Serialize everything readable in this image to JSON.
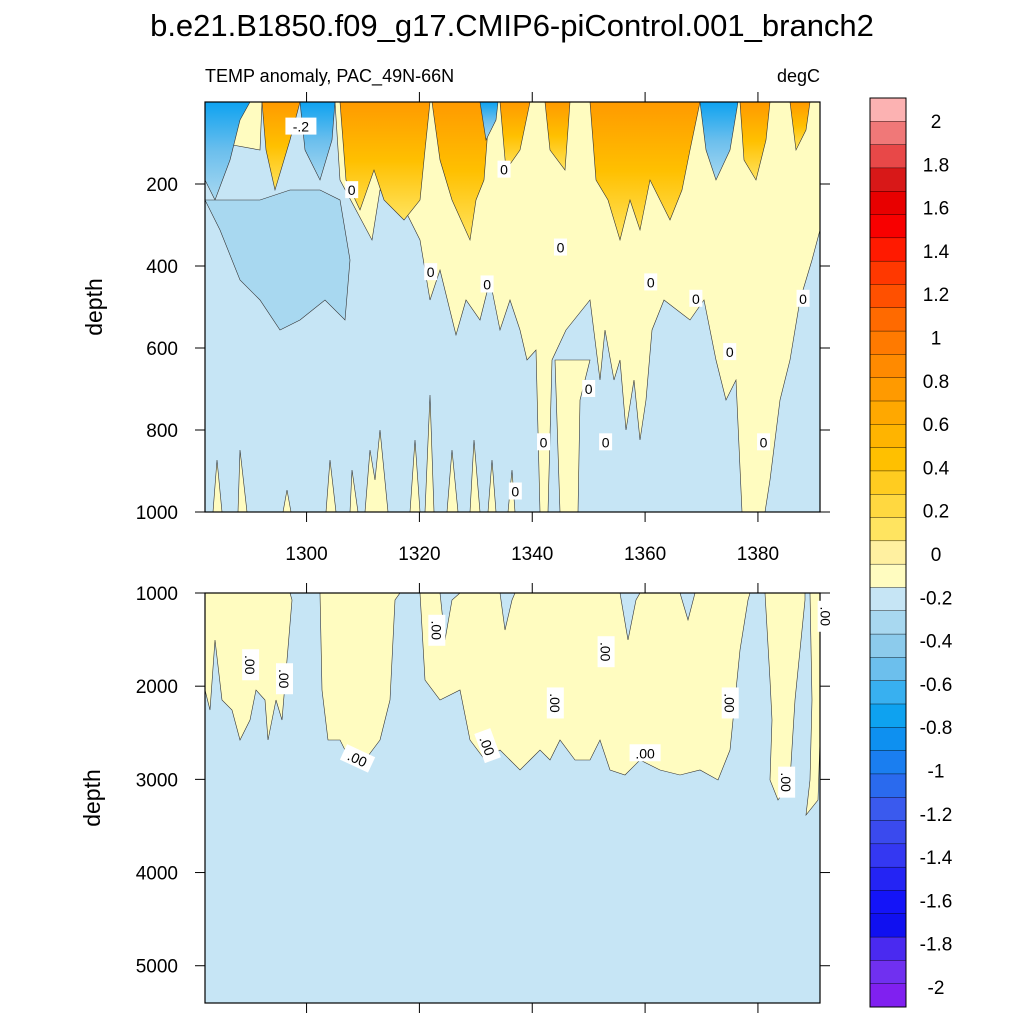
{
  "chart_data": {
    "type": "heatmap",
    "title": "b.e21.B1850.f09_g17.CMIP6-piControl.001_branch2",
    "subtitle_left": "TEMP anomaly, PAC_49N-66N",
    "subtitle_right": "degC",
    "x": {
      "range": [
        1282,
        1391
      ],
      "ticks": [
        1300,
        1320,
        1340,
        1360,
        1380
      ],
      "tick_labels": [
        "1300",
        "1320",
        "1340",
        "1360",
        "1380"
      ]
    },
    "upper_panel": {
      "ylabel": "depth",
      "yrange": [
        0,
        1000
      ],
      "ticks": [
        200,
        400,
        600,
        800,
        1000
      ],
      "tick_labels": [
        "200",
        "400",
        "600",
        "800",
        "1000"
      ],
      "contour_labels": [
        {
          "text": "-.2",
          "x": 1299,
          "y": 60
        },
        {
          "text": "0",
          "x": 1308,
          "y": 215
        },
        {
          "text": "0",
          "x": 1335,
          "y": 165
        },
        {
          "text": "0",
          "x": 1345,
          "y": 355
        },
        {
          "text": "0",
          "x": 1322,
          "y": 415
        },
        {
          "text": "0",
          "x": 1332,
          "y": 445
        },
        {
          "text": "0",
          "x": 1361,
          "y": 440
        },
        {
          "text": "0",
          "x": 1369,
          "y": 480
        },
        {
          "text": "0",
          "x": 1388,
          "y": 480
        },
        {
          "text": "0",
          "x": 1375,
          "y": 610
        },
        {
          "text": "0",
          "x": 1350,
          "y": 700
        },
        {
          "text": "0",
          "x": 1342,
          "y": 830
        },
        {
          "text": "0",
          "x": 1353,
          "y": 830
        },
        {
          "text": "0",
          "x": 1381,
          "y": 830
        },
        {
          "text": "0",
          "x": 1337,
          "y": 950
        }
      ]
    },
    "lower_panel": {
      "ylabel": "depth",
      "yrange": [
        1000,
        5400
      ],
      "ticks": [
        1000,
        2000,
        3000,
        4000,
        5000
      ],
      "tick_labels": [
        "1000",
        "2000",
        "3000",
        "4000",
        "5000"
      ],
      "contour_labels": [
        {
          "text": ".00",
          "x": 1290,
          "y": 1770,
          "rot": 90
        },
        {
          "text": ".00",
          "x": 1296,
          "y": 1920,
          "rot": 90
        },
        {
          "text": ".00",
          "x": 1323,
          "y": 1400,
          "rot": 90
        },
        {
          "text": ".00",
          "x": 1353,
          "y": 1630,
          "rot": 90
        },
        {
          "text": ".00",
          "x": 1392,
          "y": 1250,
          "rot": 90
        },
        {
          "text": ".00",
          "x": 1344,
          "y": 2180,
          "rot": 90
        },
        {
          "text": ".00",
          "x": 1375,
          "y": 2180,
          "rot": 90
        },
        {
          "text": ".00",
          "x": 1309,
          "y": 2780,
          "rot": 25
        },
        {
          "text": ".00",
          "x": 1332,
          "y": 2640,
          "rot": 70
        },
        {
          "text": ".00",
          "x": 1360,
          "y": 2720,
          "rot": 0
        },
        {
          "text": ".00",
          "x": 1385,
          "y": 3030,
          "rot": 90
        }
      ]
    },
    "colorbar": {
      "labels": [
        "2",
        "1.8",
        "1.6",
        "1.4",
        "1.2",
        "1",
        "0.8",
        "0.6",
        "0.4",
        "0.2",
        "0",
        "-0.2",
        "-0.4",
        "-0.6",
        "-0.8",
        "-1",
        "-1.2",
        "-1.4",
        "-1.6",
        "-1.8",
        "-2"
      ],
      "colors": [
        "#fcb2b2",
        "#f07878",
        "#e84848",
        "#d81818",
        "#e80000",
        "#f80000",
        "#ff1a00",
        "#ff3800",
        "#ff5000",
        "#ff6a00",
        "#ff7a00",
        "#ff8a00",
        "#ff9a00",
        "#ffa800",
        "#ffb400",
        "#ffc000",
        "#ffcc20",
        "#ffd840",
        "#ffe460",
        "#fff0a0",
        "#fffcc0",
        "#c6e5f5",
        "#a8d8f0",
        "#8ccbec",
        "#6cbfed",
        "#38b0f0",
        "#0ea2f0",
        "#0e90f0",
        "#1a7ef0",
        "#2a6aee",
        "#3a5aee",
        "#3a4aee",
        "#3438f2",
        "#2424f4",
        "#1414f8",
        "#1010f0",
        "#4a2af0",
        "#7030f0",
        "#8020f0"
      ]
    },
    "colors": {
      "neg_fill": "#c6e5f5",
      "pos_fill": "#fffcc0"
    }
  }
}
